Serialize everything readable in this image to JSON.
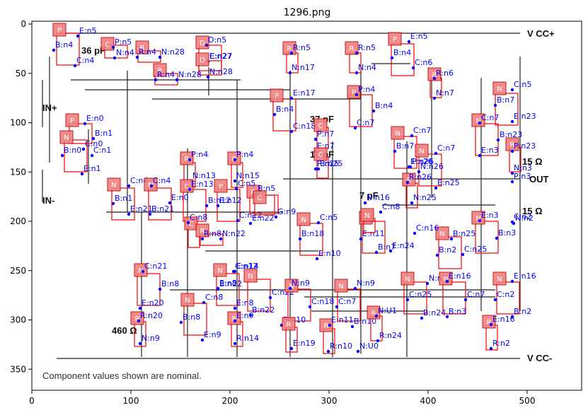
{
  "title": "1296.png",
  "axes": {
    "x_ticks": [
      "0",
      "100",
      "200",
      "300",
      "400",
      "500"
    ],
    "y_ticks": [
      "0",
      "50",
      "100",
      "150",
      "200",
      "250",
      "300",
      "350"
    ]
  },
  "schematic": {
    "rails": [
      "V CC+",
      "V CC-"
    ],
    "ports": [
      "IN+",
      "IN-",
      "OUT"
    ],
    "values": [
      "36 pF",
      "37 pF",
      "14 pF",
      "7 pF",
      "15 Ω",
      "15 Ω",
      "460 Ω"
    ],
    "footer": "Component values shown are nominal."
  },
  "tags": {
    "P": "P",
    "N": "N",
    "C": "C",
    "D": "D",
    "R": "R"
  },
  "labels": [
    "E:n5",
    "B:n4",
    "C:n4",
    "P:n5",
    "N:n4",
    "R:n4",
    "N:n28",
    "C:n27",
    "D:n5",
    "E:n27",
    "N:n28",
    "R:n4",
    "N:n28",
    "R:n5",
    "N:n17",
    "R:n5",
    "N:n4",
    "E:n5",
    "B:n4",
    "C:n6",
    "R:n6",
    "N:n7",
    "C:n5",
    "B:n7",
    "E:n23",
    "E:n17",
    "B:n4",
    "C:n18",
    "P:n4",
    "B:n4",
    "C:n7",
    "E:n0",
    "B:n1",
    "C:n0",
    "B:n0",
    "C:n1",
    "E:n1",
    "37 pF",
    "P:n7",
    "E:n7",
    "P:n25",
    "B:n25",
    "C:n7",
    "B:n7",
    "E:n26",
    "C:n7",
    "P:n26",
    "N:n26",
    "C:n7",
    "B:n23",
    "E:n3",
    "P:n23",
    "N:n3",
    "C:n4",
    "B:n1",
    "E:n21",
    "C:n4",
    "B:n21",
    "E:n0",
    "P:n4",
    "N:n13",
    "P:n4",
    "N:n15",
    "E:n13",
    "B:n12",
    "E:n12",
    "C:n12",
    "C:n5",
    "B:n5",
    "E:n22",
    "G:n9",
    "C:n5",
    "B:n18",
    "E:n10",
    "R:n26",
    "N:n25",
    "E:n25",
    "P:n3",
    "N:n2",
    "E:n3",
    "B:n3",
    "C:n2",
    "C:n8",
    "R:n8",
    "N:n22",
    "C:n21",
    "B:n8",
    "E:n20",
    "R:n20",
    "N:n9",
    "E:n8",
    "C:n8",
    "B:n8",
    "E:n9",
    "C:n12",
    "B:n22",
    "E:n8",
    "E:n14",
    "C:n22",
    "B:n22",
    "E:n9",
    "R:n14",
    "N:n9",
    "C:n18",
    "B:n10",
    "E:n19",
    "N:n9",
    "C:n7",
    "B:n10",
    "E:n11",
    "R:n10",
    "N:U0",
    "N:U1",
    "R:n24",
    "N:n16",
    "C:n25",
    "B:n24",
    "E:n16",
    "C:n7",
    "B:n3",
    "E:n16",
    "C:n2",
    "B:n2",
    "E:n16",
    "R:n2",
    "N:n16",
    "C:n8",
    "E:n11",
    "B:n7",
    "E:n24",
    "C:n16",
    "B:n25",
    "B:n2",
    "C:n25",
    "E:n25",
    "C:n2"
  ],
  "colors": {
    "label": "#0000ff",
    "box": "#ee0000",
    "tag_fill": "#f08080",
    "tag_edge": "#c00000",
    "wire": "#222222"
  }
}
